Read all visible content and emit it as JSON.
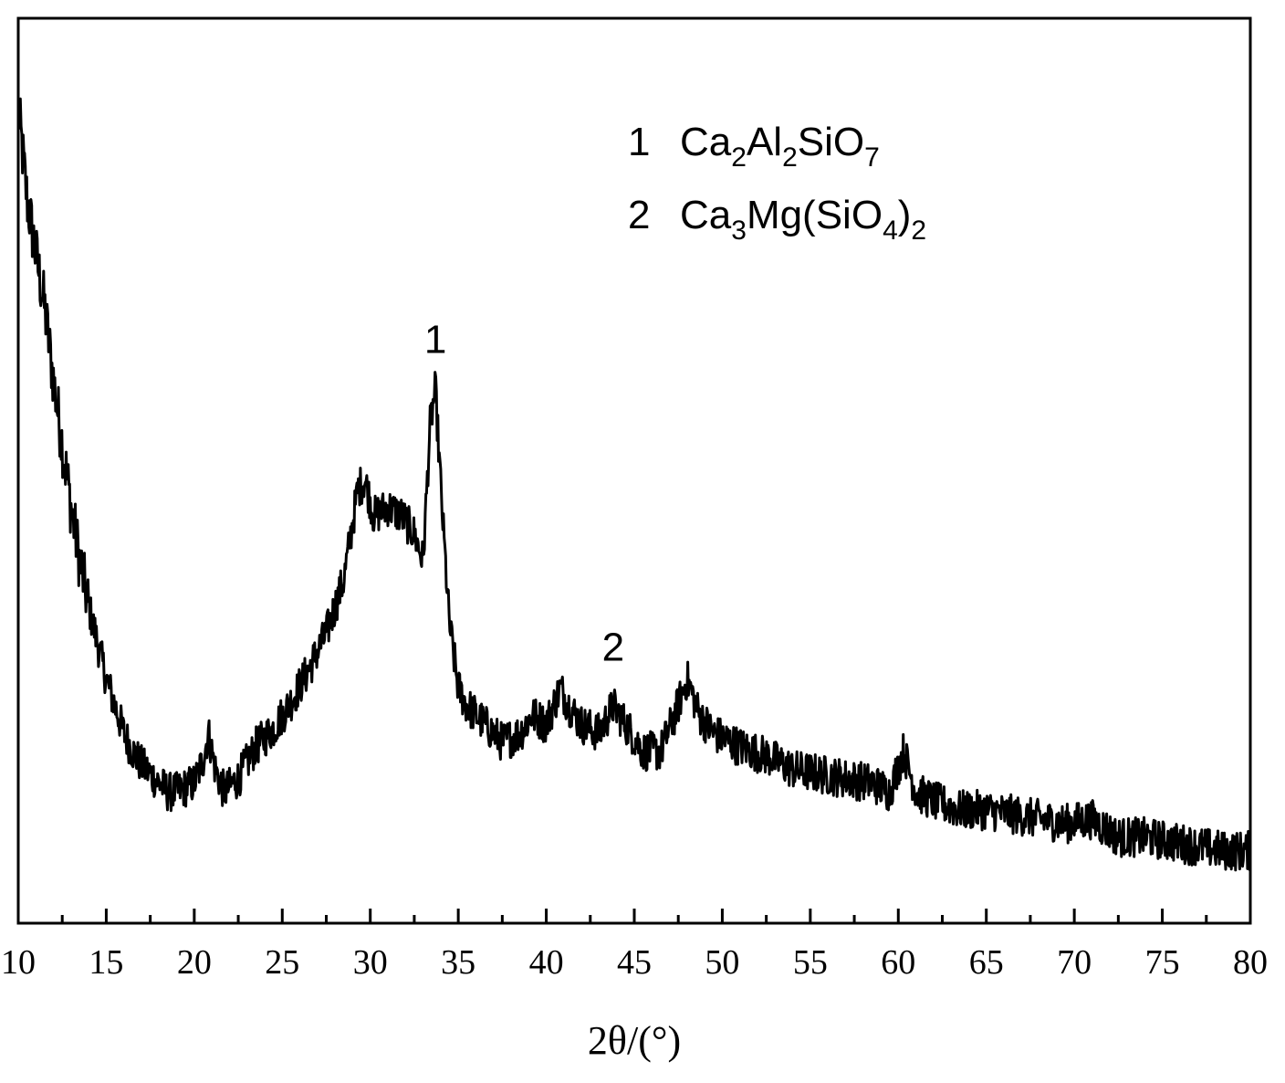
{
  "chart_data": {
    "type": "line",
    "title": "",
    "xlabel": "2θ/(°)",
    "ylabel": "",
    "xlim": [
      10,
      80
    ],
    "ylim": [
      0,
      100
    ],
    "y_ticks_shown": false,
    "grid": false,
    "x_ticks": [
      10,
      15,
      20,
      25,
      30,
      35,
      40,
      45,
      50,
      55,
      60,
      65,
      70,
      75,
      80
    ],
    "legend": {
      "placement": "top-right",
      "entries": [
        {
          "index": "1",
          "parts": [
            {
              "t": "Ca"
            },
            {
              "t": "2",
              "sub": true
            },
            {
              "t": "Al"
            },
            {
              "t": "2",
              "sub": true
            },
            {
              "t": "SiO"
            },
            {
              "t": "7",
              "sub": true
            }
          ]
        },
        {
          "index": "2",
          "parts": [
            {
              "t": "Ca"
            },
            {
              "t": "3",
              "sub": true
            },
            {
              "t": "Mg(SiO"
            },
            {
              "t": "4",
              "sub": true
            },
            {
              "t": ")"
            },
            {
              "t": "2",
              "sub": true
            }
          ]
        }
      ]
    },
    "annotations": [
      {
        "text": "1",
        "x": 33.7,
        "y": 63
      },
      {
        "text": "2",
        "x": 43.8,
        "y": 29
      }
    ],
    "series": [
      {
        "noise": 2.2,
        "points": [
          [
            10,
            90
          ],
          [
            10.5,
            80
          ],
          [
            11,
            74
          ],
          [
            11.5,
            68
          ],
          [
            12,
            60
          ],
          [
            12.5,
            53
          ],
          [
            13,
            46
          ],
          [
            13.5,
            40
          ],
          [
            14,
            35
          ],
          [
            14.5,
            31
          ],
          [
            15,
            27
          ],
          [
            15.5,
            24
          ],
          [
            16,
            21
          ],
          [
            16.5,
            19
          ],
          [
            17,
            17.5
          ],
          [
            17.5,
            16.5
          ],
          [
            18,
            15.5
          ],
          [
            18.5,
            14.5
          ],
          [
            19,
            14.5
          ],
          [
            19.5,
            15
          ],
          [
            20,
            15.5
          ],
          [
            20.5,
            18
          ],
          [
            20.8,
            21
          ],
          [
            21.2,
            17
          ],
          [
            21.7,
            14.5
          ],
          [
            22.5,
            16
          ],
          [
            23.5,
            19.5
          ],
          [
            24.5,
            21.5
          ],
          [
            25.5,
            24.5
          ],
          [
            26.5,
            28
          ],
          [
            27.5,
            32
          ],
          [
            28.5,
            38
          ],
          [
            29.3,
            48
          ],
          [
            29.7,
            49
          ],
          [
            30.2,
            45
          ],
          [
            31,
            46
          ],
          [
            31.8,
            45
          ],
          [
            32.5,
            43
          ],
          [
            33,
            40
          ],
          [
            33.4,
            55
          ],
          [
            33.7,
            59
          ],
          [
            34.1,
            45
          ],
          [
            34.5,
            33
          ],
          [
            35,
            26
          ],
          [
            35.5,
            24
          ],
          [
            36.5,
            22
          ],
          [
            37.5,
            20
          ],
          [
            38.5,
            21
          ],
          [
            39.2,
            23
          ],
          [
            40,
            22
          ],
          [
            40.8,
            26
          ],
          [
            41.3,
            24
          ],
          [
            42,
            22
          ],
          [
            43,
            21
          ],
          [
            43.8,
            24
          ],
          [
            44.5,
            22
          ],
          [
            45.5,
            19
          ],
          [
            46.5,
            19
          ],
          [
            47.3,
            23
          ],
          [
            48,
            27
          ],
          [
            48.7,
            23
          ],
          [
            49.5,
            21
          ],
          [
            51,
            19.5
          ],
          [
            52.5,
            18.5
          ],
          [
            54,
            17
          ],
          [
            55.5,
            16.5
          ],
          [
            57,
            16
          ],
          [
            58.5,
            15.5
          ],
          [
            59.5,
            14.5
          ],
          [
            60.3,
            19
          ],
          [
            61,
            14.5
          ],
          [
            62,
            13.5
          ],
          [
            63.5,
            12.5
          ],
          [
            65,
            12.5
          ],
          [
            66.5,
            12
          ],
          [
            68,
            11.5
          ],
          [
            69.5,
            11
          ],
          [
            71,
            11.5
          ],
          [
            72.5,
            9.5
          ],
          [
            74,
            9.5
          ],
          [
            75.5,
            9
          ],
          [
            77,
            8.5
          ],
          [
            78.5,
            8
          ],
          [
            80,
            8
          ]
        ]
      }
    ]
  }
}
